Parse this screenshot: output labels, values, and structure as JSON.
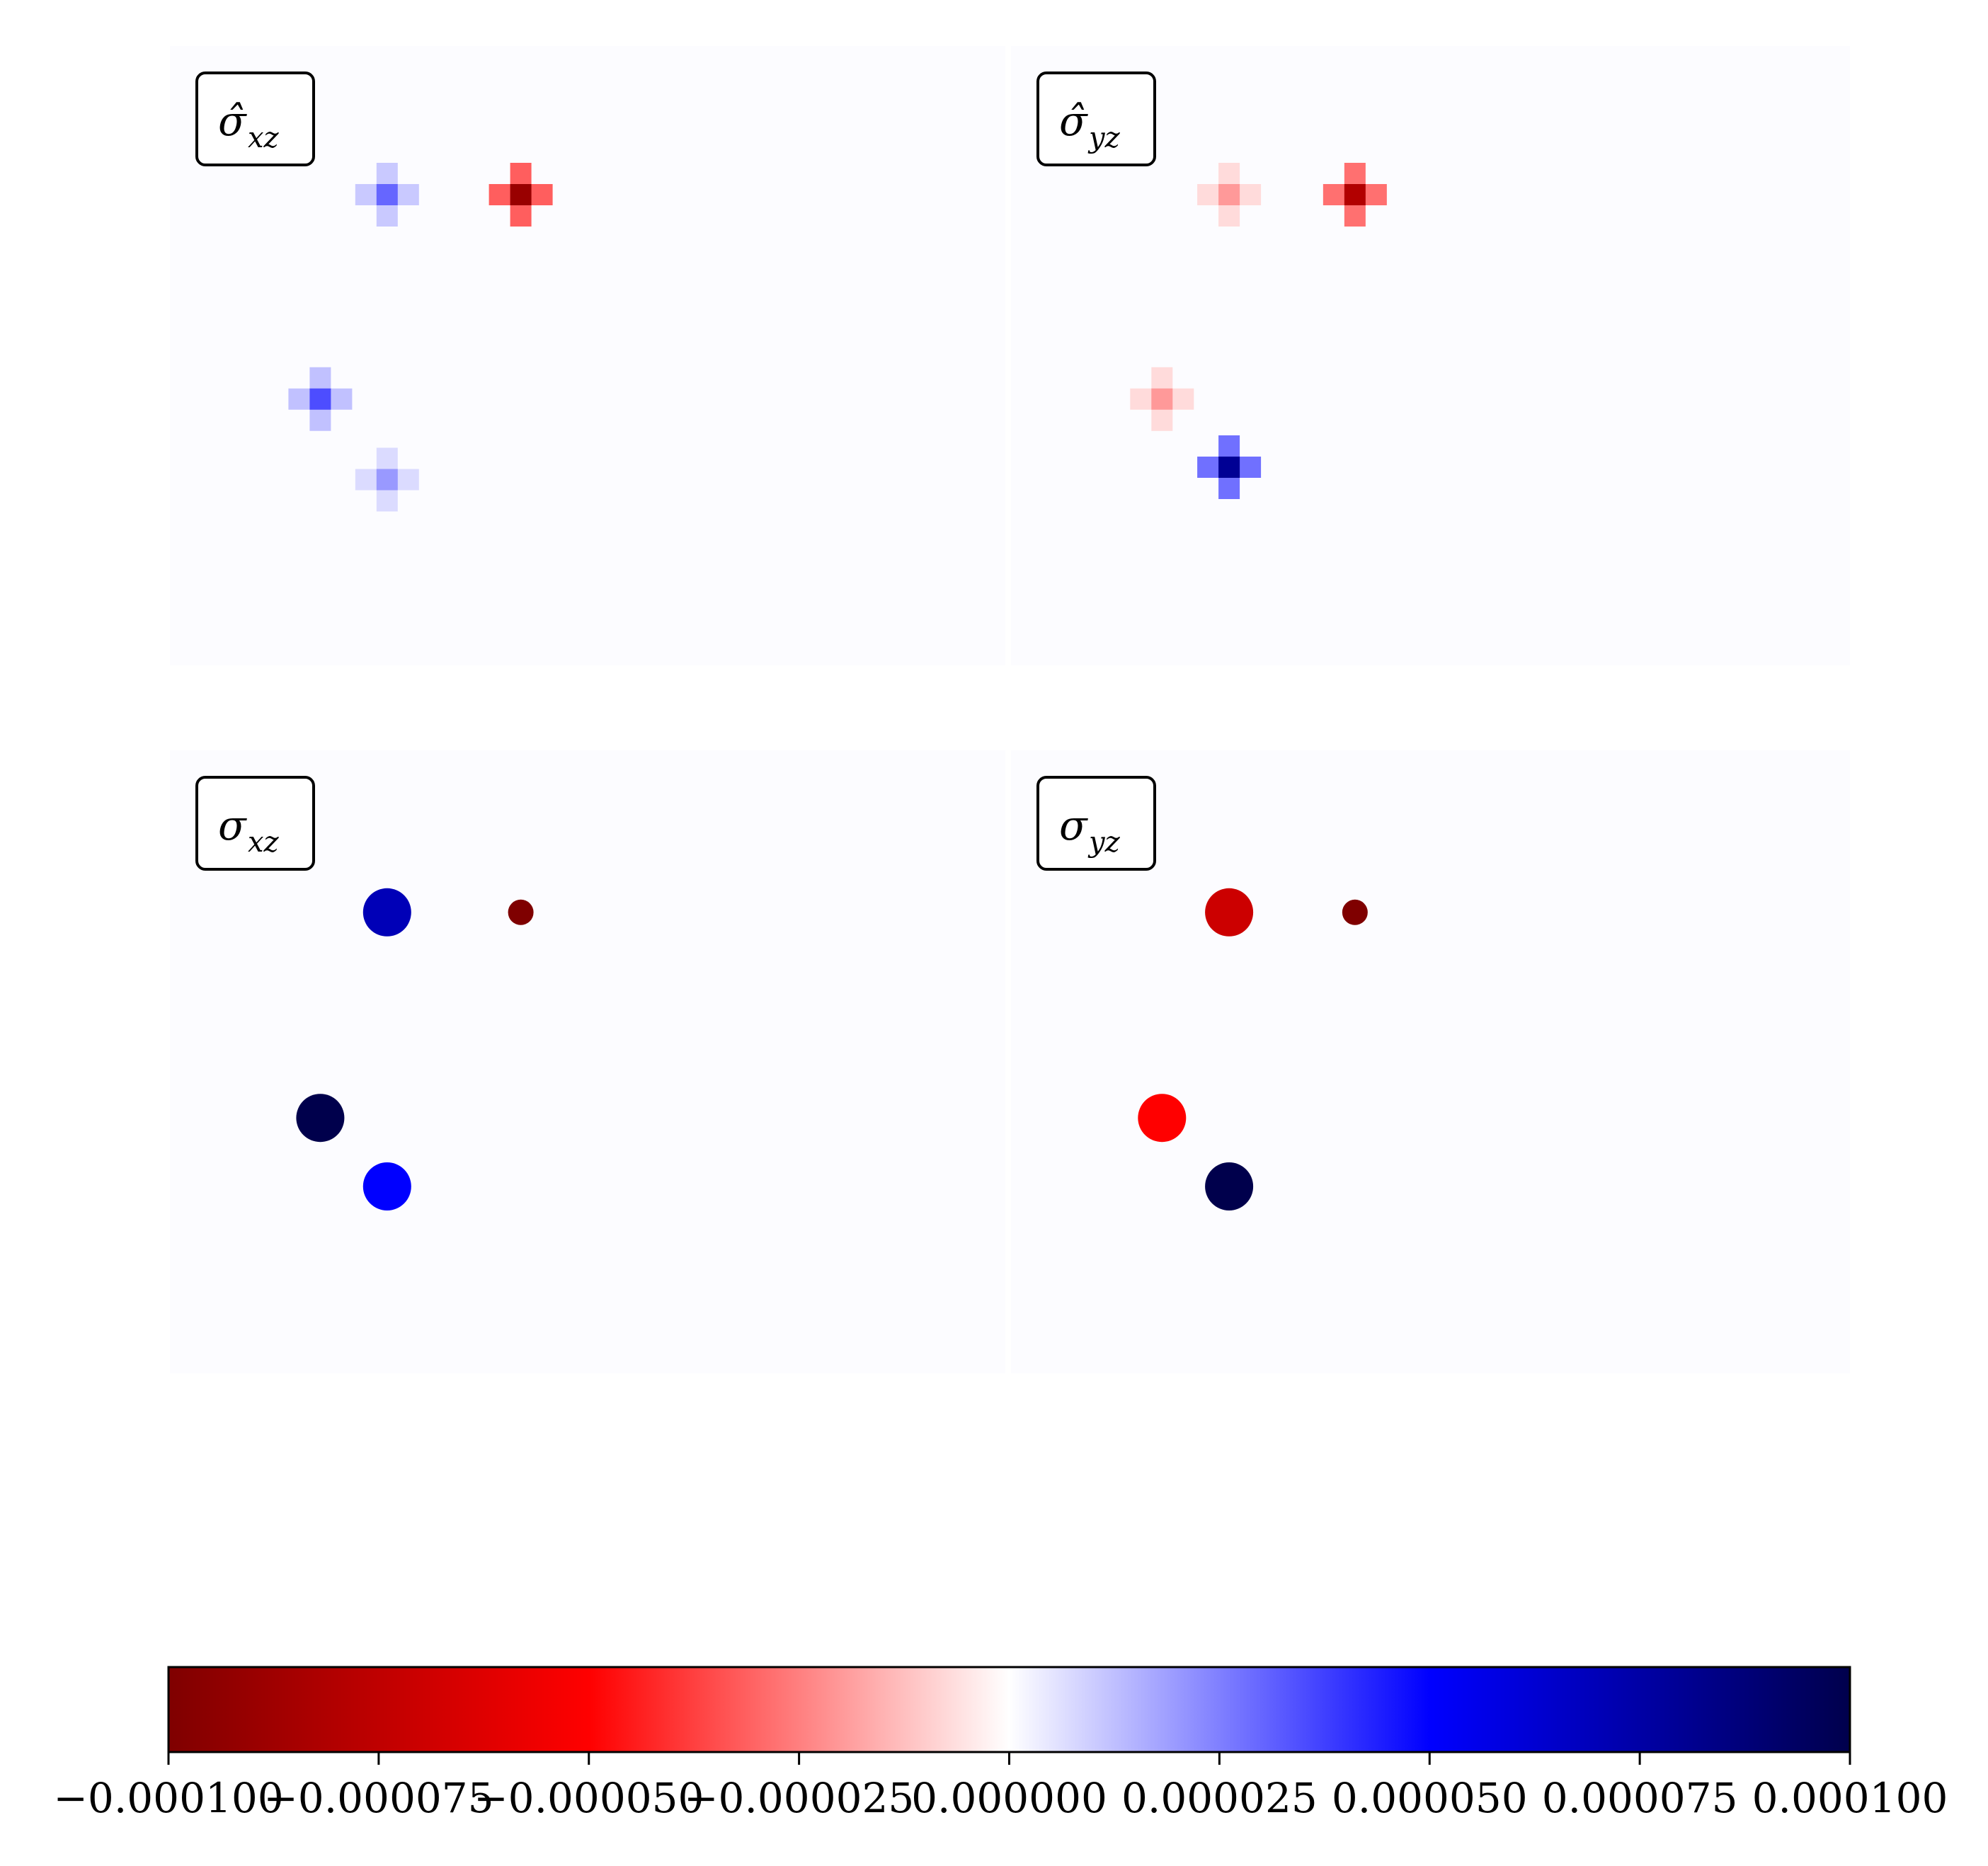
{
  "chart_data": {
    "type": "heatmap",
    "colormap": "seismic_r",
    "colorbar": {
      "vmin": -0.0001,
      "vmax": 0.0001,
      "orientation": "horizontal",
      "placement": "bottom",
      "ticks": [
        -0.0001,
        -7.5e-05,
        -5e-05,
        -2.5e-05,
        0.0,
        2.5e-05,
        5e-05,
        7.5e-05,
        0.0001
      ],
      "tick_labels": [
        "−0.000100",
        "−0.000075",
        "−0.000050",
        "−0.000025",
        "0.000000",
        "0.000025",
        "0.000050",
        "0.000075",
        "0.000100"
      ]
    },
    "panels": [
      {
        "id": "sigma-hat-xz",
        "label_base": "σ̂",
        "label_sub": "xz",
        "axes_visible": false,
        "features": [
          {
            "kind": "blob",
            "x": 0.26,
            "y": 0.24,
            "value": 3e-05,
            "note": "light blue cross"
          },
          {
            "kind": "blob",
            "x": 0.42,
            "y": 0.24,
            "value": -9e-05,
            "note": "dark red core"
          },
          {
            "kind": "blob",
            "x": 0.18,
            "y": 0.57,
            "value": 3.5e-05,
            "note": "blue cross"
          },
          {
            "kind": "blob",
            "x": 0.26,
            "y": 0.7,
            "value": 2e-05,
            "note": "light blue"
          }
        ]
      },
      {
        "id": "sigma-hat-yz",
        "label_base": "σ̂",
        "label_sub": "yz",
        "axes_visible": false,
        "features": [
          {
            "kind": "blob",
            "x": 0.26,
            "y": 0.24,
            "value": -2e-05,
            "note": "light red"
          },
          {
            "kind": "blob",
            "x": 0.41,
            "y": 0.24,
            "value": -8e-05,
            "note": "red core"
          },
          {
            "kind": "blob",
            "x": 0.18,
            "y": 0.57,
            "value": -2e-05,
            "note": "light red cross"
          },
          {
            "kind": "blob",
            "x": 0.26,
            "y": 0.68,
            "value": 8e-05,
            "note": "dark blue cross"
          }
        ]
      },
      {
        "id": "sigma-xz",
        "label_base": "σ",
        "label_sub": "xz",
        "axes_visible": false,
        "features": [
          {
            "kind": "disk",
            "x": 0.26,
            "y": 0.26,
            "value": 7e-05,
            "note": "blue round"
          },
          {
            "kind": "disk",
            "x": 0.42,
            "y": 0.26,
            "value": -0.0001,
            "note": "small dark red"
          },
          {
            "kind": "disk",
            "x": 0.18,
            "y": 0.59,
            "value": 0.0001,
            "note": "navy"
          },
          {
            "kind": "disk",
            "x": 0.26,
            "y": 0.7,
            "value": 5e-05,
            "note": "blue"
          }
        ]
      },
      {
        "id": "sigma-yz",
        "label_base": "σ",
        "label_sub": "yz",
        "axes_visible": false,
        "features": [
          {
            "kind": "disk",
            "x": 0.26,
            "y": 0.26,
            "value": -7e-05,
            "note": "red round"
          },
          {
            "kind": "disk",
            "x": 0.41,
            "y": 0.26,
            "value": -0.0001,
            "note": "small dark red"
          },
          {
            "kind": "disk",
            "x": 0.18,
            "y": 0.59,
            "value": -5e-05,
            "note": "red"
          },
          {
            "kind": "disk",
            "x": 0.26,
            "y": 0.7,
            "value": 0.0001,
            "note": "navy"
          }
        ]
      }
    ]
  }
}
